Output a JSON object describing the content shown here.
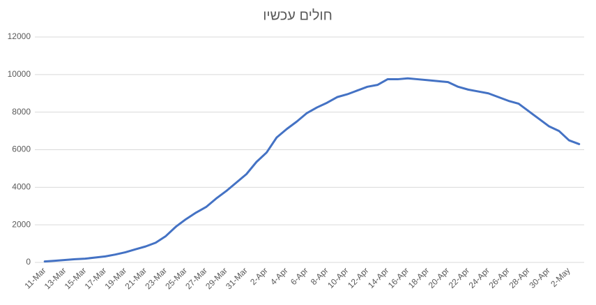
{
  "chart_data": {
    "type": "line",
    "title": "חולים עכשיו",
    "categories": [
      "11-Mar",
      null,
      "13-Mar",
      null,
      "15-Mar",
      null,
      "17-Mar",
      null,
      "19-Mar",
      null,
      "21-Mar",
      null,
      "23-Mar",
      null,
      "25-Mar",
      null,
      "27-Mar",
      null,
      "29-Mar",
      null,
      "31-Mar",
      null,
      "2-Apr",
      null,
      "4-Apr",
      null,
      "6-Apr",
      null,
      "8-Apr",
      null,
      "10-Apr",
      null,
      "12-Apr",
      null,
      "14-Apr",
      null,
      "16-Apr",
      null,
      "18-Apr",
      null,
      "20-Apr",
      null,
      "22-Apr",
      null,
      "24-Apr",
      null,
      "26-Apr",
      null,
      "28-Apr",
      null,
      "30-Apr",
      null,
      "2-May",
      null
    ],
    "series": [
      {
        "color": "#4472c4",
        "values": [
          50,
          90,
          130,
          170,
          200,
          260,
          320,
          420,
          540,
          700,
          850,
          1050,
          1400,
          1900,
          2300,
          2650,
          2950,
          3400,
          3800,
          4250,
          4700,
          5350,
          5850,
          6650,
          7100,
          7500,
          7950,
          8250,
          8500,
          8800,
          8950,
          9150,
          9350,
          9450,
          9750,
          9750,
          9800,
          9750,
          9700,
          9650,
          9600,
          9350,
          9200,
          9100,
          9000,
          8800,
          8600,
          8450,
          8050,
          7650,
          7250,
          7000,
          6500,
          6300
        ]
      }
    ],
    "ylim": [
      0,
      12000
    ],
    "yticks": [
      0,
      2000,
      4000,
      6000,
      8000,
      10000,
      12000
    ],
    "grid": true
  }
}
